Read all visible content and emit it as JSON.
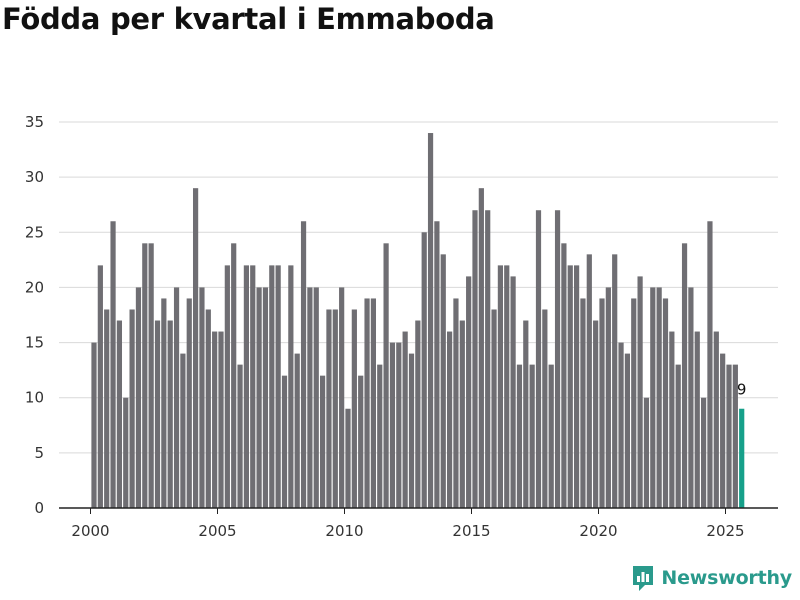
{
  "title": "Födda per kvartal i Emmaboda",
  "brand": {
    "name": "Newsworthy",
    "color": "#2a9a8c",
    "icon": "bar-chart-logo-icon"
  },
  "chart_data": {
    "type": "bar",
    "title": "Födda per kvartal i Emmaboda",
    "xlabel": "",
    "ylabel": "",
    "ylim": [
      0,
      35
    ],
    "yticks": [
      0,
      5,
      10,
      15,
      20,
      25,
      30,
      35
    ],
    "xticks": [
      "2000",
      "2005",
      "2010",
      "2015",
      "2020",
      "2025"
    ],
    "x_start": "2000 Q1",
    "x_end": "2025 Q3",
    "bar_color": "#6f6e73",
    "highlight_color": "#16a08a",
    "grid": true,
    "highlight_last_label": "9",
    "values": [
      15,
      22,
      18,
      26,
      17,
      10,
      18,
      20,
      24,
      24,
      17,
      19,
      17,
      20,
      14,
      19,
      29,
      20,
      18,
      16,
      16,
      22,
      24,
      13,
      22,
      22,
      20,
      20,
      22,
      22,
      12,
      22,
      14,
      26,
      20,
      20,
      12,
      18,
      18,
      20,
      9,
      18,
      12,
      19,
      19,
      13,
      24,
      15,
      15,
      16,
      14,
      17,
      25,
      34,
      26,
      23,
      16,
      19,
      17,
      21,
      27,
      29,
      27,
      18,
      22,
      22,
      21,
      13,
      17,
      13,
      27,
      18,
      13,
      27,
      24,
      22,
      22,
      19,
      23,
      17,
      19,
      20,
      23,
      15,
      14,
      19,
      21,
      10,
      20,
      20,
      19,
      16,
      13,
      24,
      20,
      16,
      10,
      26,
      16,
      14,
      13,
      13,
      9
    ]
  }
}
